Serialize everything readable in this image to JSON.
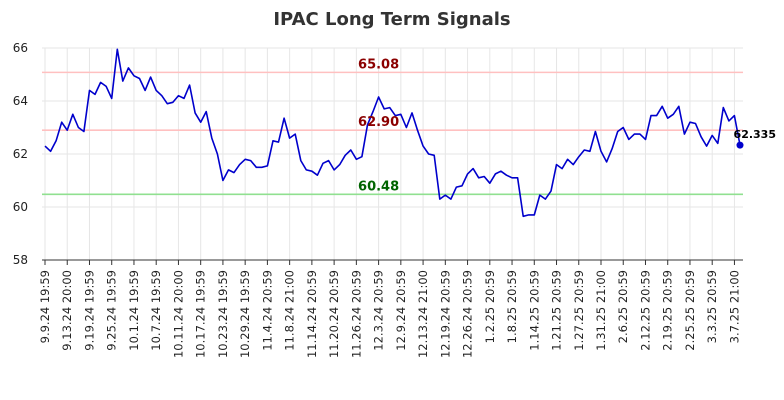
{
  "chart_data": {
    "type": "line",
    "title": "IPAC Long Term Signals",
    "xlabel": "",
    "ylabel": "",
    "ylim": [
      58,
      66
    ],
    "yticks": [
      58,
      60,
      62,
      64,
      66
    ],
    "grid": true,
    "tick_labels": [
      "9.9.24 19:59",
      "9.13.24 20:00",
      "9.19.24 19:59",
      "9.25.24 19:59",
      "10.1.24 19:59",
      "10.7.24 19:59",
      "10.11.24 20:00",
      "10.17.24 19:59",
      "10.23.24 19:59",
      "10.29.24 19:59",
      "11.4.24 20:59",
      "11.8.24 21:00",
      "11.14.24 20:59",
      "11.20.24 20:59",
      "11.26.24 20:59",
      "12.3.24 20:59",
      "12.9.24 20:59",
      "12.13.24 21:00",
      "12.19.24 20:59",
      "12.26.24 20:59",
      "1.2.25 20:59",
      "1.8.25 20:59",
      "1.14.25 20:59",
      "1.21.25 20:59",
      "1.27.25 20:59",
      "1.31.25 21:00",
      "2.6.25 20:59",
      "2.12.25 20:59",
      "2.19.25 20:59",
      "2.25.25 20:59",
      "3.3.25 20:59",
      "3.7.25 21:00"
    ],
    "tick_every": 4,
    "horizontal_lines": [
      {
        "value": 65.08,
        "label": "65.08",
        "line_color": "#ffc0c0",
        "label_color": "#8b0000",
        "label_index": 60
      },
      {
        "value": 62.9,
        "label": "62.90",
        "line_color": "#ffc0c0",
        "label_color": "#8b0000",
        "label_index": 60
      },
      {
        "value": 60.48,
        "label": "60.48",
        "line_color": "#90e090",
        "label_color": "#006400",
        "label_index": 60
      }
    ],
    "series": [
      {
        "color": "#0000cc",
        "values": [
          62.3,
          62.1,
          62.5,
          63.2,
          62.9,
          63.5,
          63.0,
          62.85,
          64.4,
          64.25,
          64.7,
          64.55,
          64.1,
          65.95,
          64.75,
          65.25,
          64.95,
          64.85,
          64.4,
          64.9,
          64.4,
          64.2,
          63.9,
          63.95,
          64.2,
          64.1,
          64.6,
          63.55,
          63.2,
          63.6,
          62.6,
          62.0,
          61.0,
          61.4,
          61.3,
          61.6,
          61.8,
          61.75,
          61.5,
          61.5,
          61.55,
          62.5,
          62.45,
          63.35,
          62.6,
          62.75,
          61.75,
          61.4,
          61.35,
          61.2,
          61.65,
          61.75,
          61.4,
          61.6,
          61.95,
          62.15,
          61.8,
          61.9,
          63.1,
          63.6,
          64.15,
          63.7,
          63.75,
          63.45,
          63.5,
          63.0,
          63.55,
          62.9,
          62.3,
          62.0,
          61.95,
          60.3,
          60.45,
          60.3,
          60.75,
          60.8,
          61.25,
          61.45,
          61.1,
          61.15,
          60.9,
          61.25,
          61.35,
          61.2,
          61.1,
          61.1,
          59.65,
          59.7,
          59.7,
          60.45,
          60.3,
          60.6,
          61.6,
          61.45,
          61.8,
          61.6,
          61.9,
          62.15,
          62.1,
          62.85,
          62.1,
          61.7,
          62.2,
          62.85,
          63.0,
          62.55,
          62.75,
          62.75,
          62.55,
          63.45,
          63.45,
          63.8,
          63.35,
          63.5,
          63.8,
          62.75,
          63.2,
          63.15,
          62.65,
          62.3,
          62.7,
          62.4,
          63.75,
          63.25,
          63.45,
          62.335
        ]
      }
    ],
    "last_value_label": "62.335"
  }
}
